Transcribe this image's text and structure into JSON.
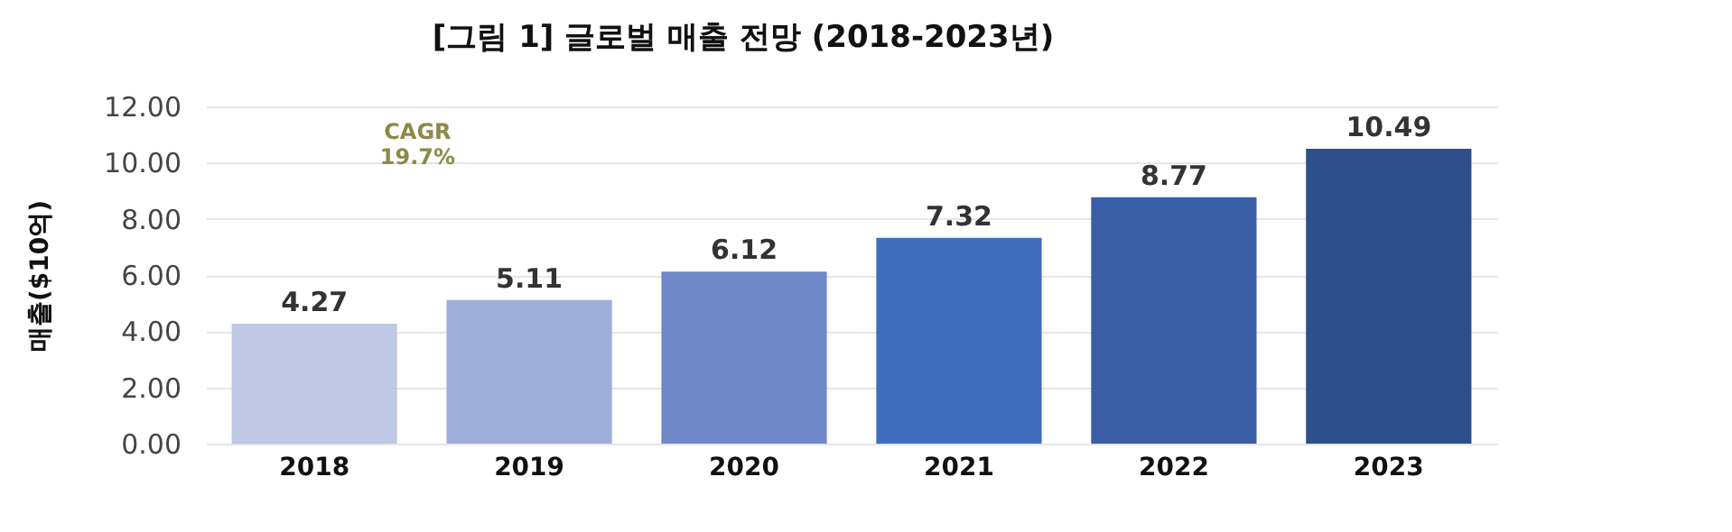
{
  "chart_data": {
    "type": "bar",
    "title": "[그림 1] 글로벌 매출 전망 (2018-2023년)",
    "ylabel": "매출($10억)",
    "categories": [
      "2018",
      "2019",
      "2020",
      "2021",
      "2022",
      "2023"
    ],
    "values": [
      4.27,
      5.11,
      6.12,
      7.32,
      8.77,
      10.49
    ],
    "colors": [
      "#bfc8e4",
      "#9eaed9",
      "#6e88c8",
      "#3f6dbb",
      "#3a5fa6",
      "#2f4f8b"
    ],
    "ylim": [
      0,
      12
    ],
    "yticks": [
      {
        "value": 0,
        "label": "0.00"
      },
      {
        "value": 2,
        "label": "2.00"
      },
      {
        "value": 4,
        "label": "4.00"
      },
      {
        "value": 6,
        "label": "6.00"
      },
      {
        "value": 8,
        "label": "8.00"
      },
      {
        "value": 10,
        "label": "10.00"
      },
      {
        "value": 12,
        "label": "12.00"
      }
    ],
    "grid": "y",
    "data_labels": true,
    "annotations": [
      "CAGR 19.7%"
    ]
  }
}
